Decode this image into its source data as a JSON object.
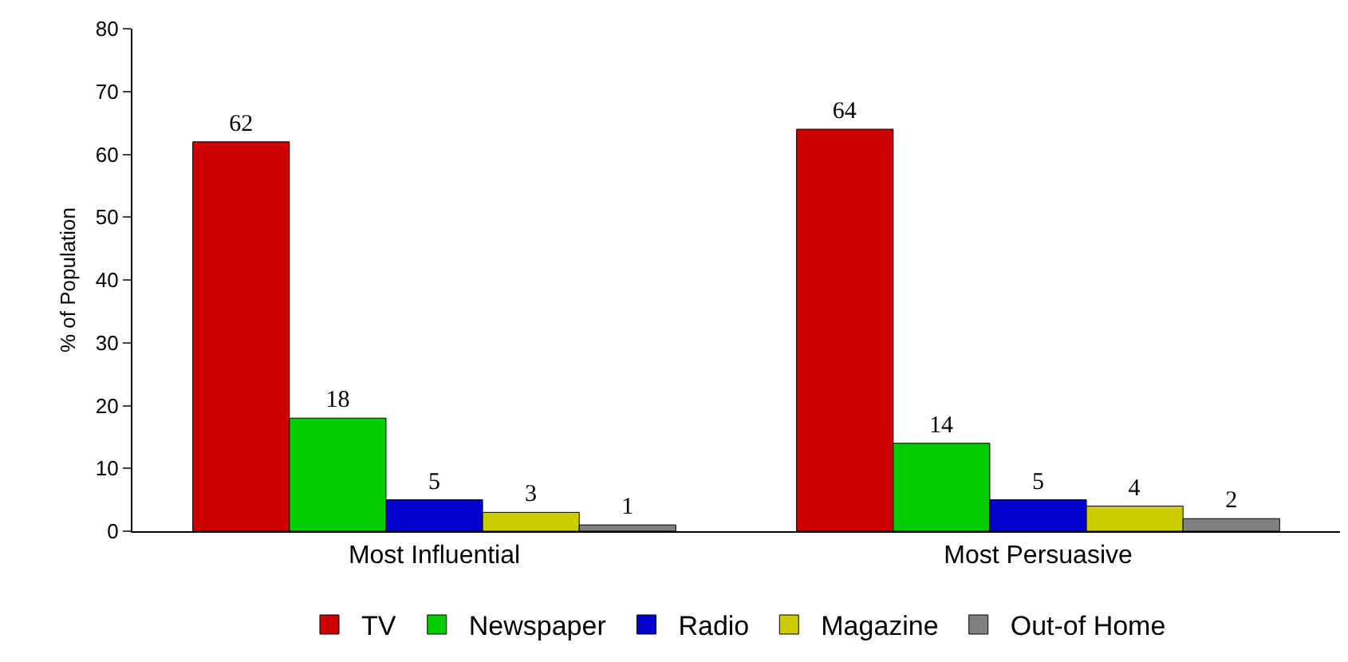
{
  "chart_data": {
    "type": "bar",
    "ylabel": "% of Population",
    "categories": [
      "Most Influential",
      "Most Persuasive"
    ],
    "series": [
      {
        "name": "TV",
        "color": "#cc0000",
        "values": [
          62,
          64
        ]
      },
      {
        "name": "Newspaper",
        "color": "#00cc00",
        "values": [
          18,
          14
        ]
      },
      {
        "name": "Radio",
        "color": "#0000cc",
        "values": [
          5,
          5
        ]
      },
      {
        "name": "Magazine",
        "color": "#cccc00",
        "values": [
          3,
          4
        ]
      },
      {
        "name": "Out-of Home",
        "color": "#808080",
        "values": [
          1,
          2
        ]
      }
    ],
    "ylim": [
      0,
      80
    ],
    "yticks": [
      0,
      10,
      20,
      30,
      40,
      50,
      60,
      70,
      80
    ],
    "grid": false,
    "legend": "bottom",
    "data_labels": true
  }
}
